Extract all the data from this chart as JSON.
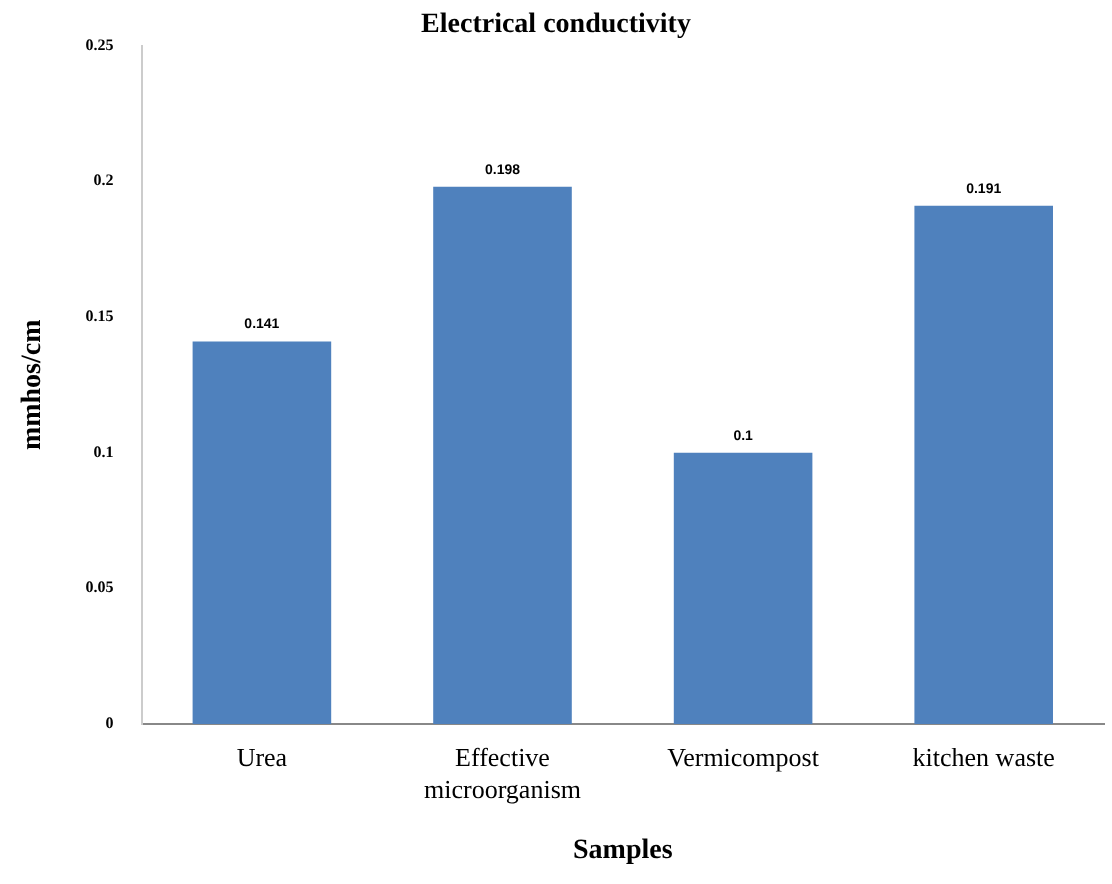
{
  "chart_data": {
    "type": "bar",
    "title": "Electrical conductivity",
    "xlabel": "Samples",
    "ylabel": "mmhos/cm",
    "categories": [
      "Urea",
      "Effective microorganism",
      "Vermicompost",
      "kitchen waste"
    ],
    "values": [
      0.141,
      0.198,
      0.1,
      0.191
    ],
    "color": "#4f81bd",
    "ylim": [
      0,
      0.25
    ],
    "yticks": [
      0,
      0.05,
      0.1,
      0.15,
      0.2,
      0.25
    ],
    "grid": false,
    "legend": false,
    "data_labels": true
  }
}
